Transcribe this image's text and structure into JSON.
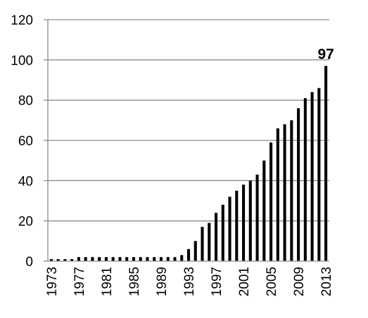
{
  "chart_data": {
    "type": "bar",
    "title": "",
    "xlabel": "",
    "ylabel": "",
    "categories": [
      1973,
      1974,
      1975,
      1976,
      1977,
      1978,
      1979,
      1980,
      1981,
      1982,
      1983,
      1984,
      1985,
      1986,
      1987,
      1988,
      1989,
      1990,
      1991,
      1992,
      1993,
      1994,
      1995,
      1996,
      1997,
      1998,
      1999,
      2000,
      2001,
      2002,
      2003,
      2004,
      2005,
      2006,
      2007,
      2008,
      2009,
      2010,
      2011,
      2012,
      2013
    ],
    "values": [
      1,
      1,
      1,
      1,
      2,
      2,
      2,
      2,
      2,
      2,
      2,
      2,
      2,
      2,
      2,
      2,
      2,
      2,
      2,
      3,
      6,
      10,
      17,
      19,
      24,
      28,
      32,
      35,
      38,
      40,
      43,
      50,
      59,
      66,
      68,
      70,
      76,
      81,
      84,
      86,
      97
    ],
    "x_tick_labels": [
      "1973",
      "1977",
      "1981",
      "1985",
      "1989",
      "1993",
      "1997",
      "2001",
      "2005",
      "2009",
      "2013"
    ],
    "y_ticks": [
      "0",
      "20",
      "40",
      "60",
      "80",
      "100",
      "120"
    ],
    "ylim": [
      0,
      120
    ],
    "grid": "horizontal",
    "legend": "none",
    "annotations": [
      {
        "category": 2013,
        "text": "97"
      }
    ],
    "bar_color": "#000000",
    "grid_color": "#8c8c8c"
  }
}
